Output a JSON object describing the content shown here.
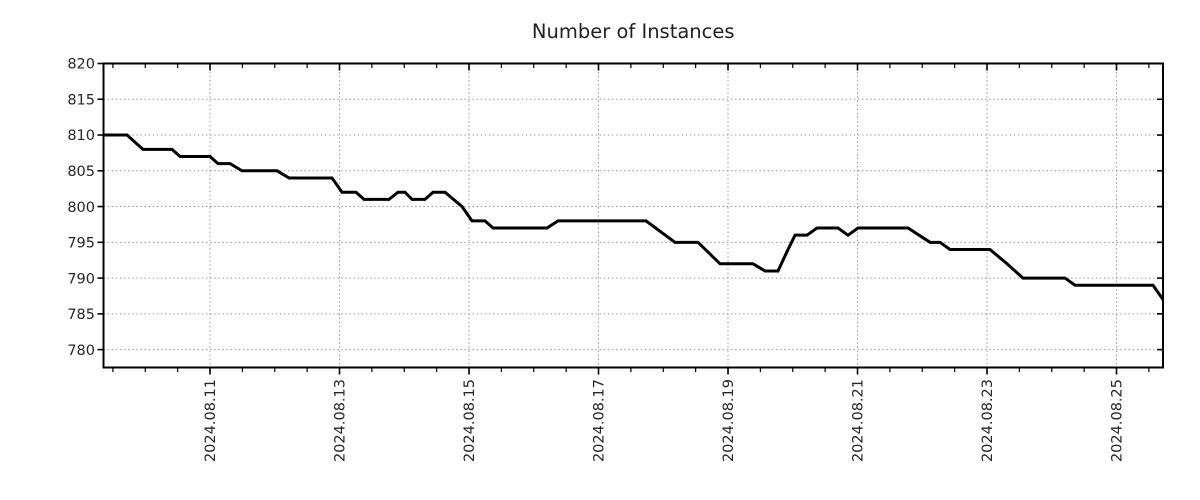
{
  "chart_data": {
    "type": "line",
    "title": "Number of Instances",
    "series_name": "instances",
    "line_color": "#000000",
    "grid": true,
    "grid_color": "#999999",
    "axis_color": "#000000",
    "text_color": "#262626",
    "x_axis": {
      "unit": "days since 2024-08-09 00:00",
      "range": [
        0.355,
        16.718
      ],
      "major_ticks": [
        2,
        4,
        6,
        8,
        10,
        12,
        14,
        16
      ],
      "major_tick_labels": [
        "2024.08.11",
        "2024.08.13",
        "2024.08.15",
        "2024.08.17",
        "2024.08.19",
        "2024.08.21",
        "2024.08.23",
        "2024.08.25"
      ],
      "minor_tick_interval": 0.5,
      "label_rotation_deg": -90
    },
    "y_axis": {
      "range": [
        777.5,
        820
      ],
      "ticks": [
        780,
        785,
        790,
        795,
        800,
        805,
        810,
        815,
        820
      ]
    },
    "points": [
      [
        0.355,
        810
      ],
      [
        0.718,
        810
      ],
      [
        0.965,
        808
      ],
      [
        1.413,
        808
      ],
      [
        1.537,
        807
      ],
      [
        2.0,
        807
      ],
      [
        2.124,
        806
      ],
      [
        2.309,
        806
      ],
      [
        2.494,
        805
      ],
      [
        3.035,
        805
      ],
      [
        3.22,
        804
      ],
      [
        3.884,
        804
      ],
      [
        4.039,
        802
      ],
      [
        4.255,
        802
      ],
      [
        4.378,
        801
      ],
      [
        4.764,
        801
      ],
      [
        4.903,
        802
      ],
      [
        5.011,
        802
      ],
      [
        5.12,
        801
      ],
      [
        5.32,
        801
      ],
      [
        5.444,
        802
      ],
      [
        5.629,
        802
      ],
      [
        5.892,
        800
      ],
      [
        6.046,
        798
      ],
      [
        6.247,
        798
      ],
      [
        6.371,
        797
      ],
      [
        7.205,
        797
      ],
      [
        7.375,
        798
      ],
      [
        8.734,
        798
      ],
      [
        9.181,
        795
      ],
      [
        9.537,
        795
      ],
      [
        9.876,
        792
      ],
      [
        10.386,
        792
      ],
      [
        10.571,
        791
      ],
      [
        10.772,
        791
      ],
      [
        10.927,
        794
      ],
      [
        11.035,
        796
      ],
      [
        11.22,
        796
      ],
      [
        11.375,
        797
      ],
      [
        11.699,
        797
      ],
      [
        11.853,
        796
      ],
      [
        12.008,
        797
      ],
      [
        12.78,
        797
      ],
      [
        13.12,
        795
      ],
      [
        13.274,
        795
      ],
      [
        13.429,
        794
      ],
      [
        14.046,
        794
      ],
      [
        14.309,
        792
      ],
      [
        14.556,
        790
      ],
      [
        15.205,
        790
      ],
      [
        15.359,
        789
      ],
      [
        16.564,
        789
      ],
      [
        16.718,
        787
      ]
    ]
  }
}
